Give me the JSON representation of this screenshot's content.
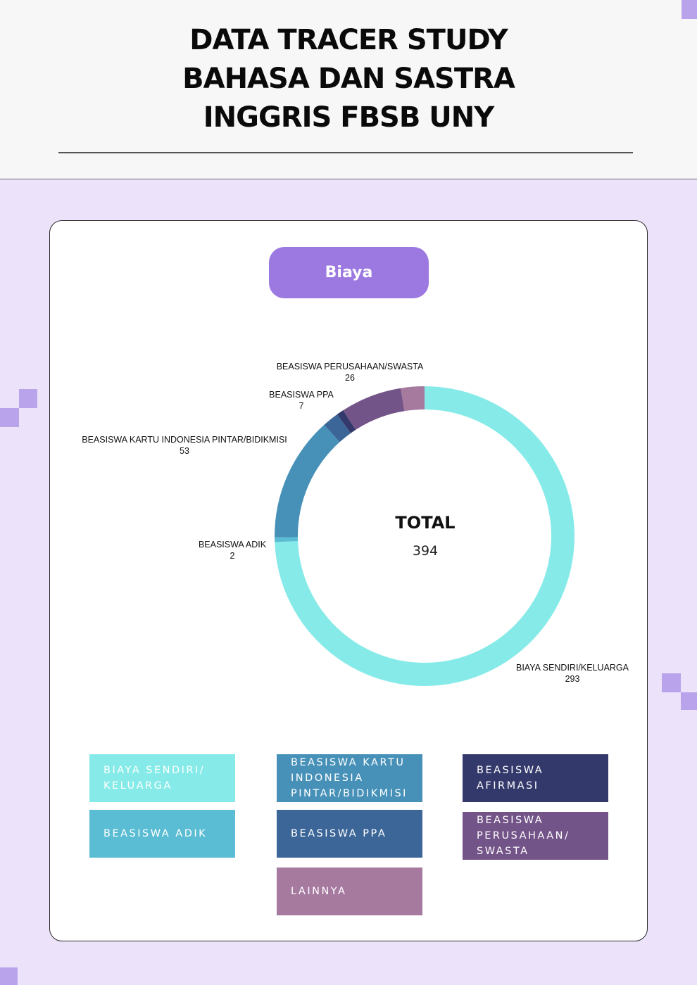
{
  "header": {
    "title_lines": [
      "DATA TRACER STUDY",
      "BAHASA DAN SASTRA",
      "INGGRIS FBSB UNY"
    ]
  },
  "badge": "Biaya",
  "chart_data": {
    "type": "pie",
    "variant": "donut",
    "center_title": "TOTAL",
    "center_value": "394",
    "slices": [
      {
        "label": "BIAYA SENDIRI/KELUARGA",
        "value": 293,
        "color": "#86ebe8"
      },
      {
        "label": "BEASISWA ADIK",
        "value": 2,
        "color": "#5abdd3"
      },
      {
        "label": "BEASISWA KARTU INDONESIA PINTAR/BIDIKMISI",
        "value": 53,
        "color": "#4791b9"
      },
      {
        "label": "BEASISWA PPA",
        "value": 7,
        "color": "#3c6698"
      },
      {
        "label": "BEASISWA AFIRMASI",
        "value": 3,
        "color": "#34396b"
      },
      {
        "label": "BEASISWA PERUSAHAAN/SWASTA",
        "value": 26,
        "color": "#735488"
      },
      {
        "label": "LAINNYA",
        "value": 10,
        "color": "#a6799f"
      }
    ],
    "callouts": [
      {
        "label": "BEASISWA PERUSAHAAN/SWASTA",
        "value": "26"
      },
      {
        "label": "BEASISWA PPA",
        "value": "7"
      },
      {
        "label": "BEASISWA KARTU INDONESIA PINTAR/BIDIKMISI",
        "value": "53"
      },
      {
        "label": "BEASISWA ADIK",
        "value": "2"
      },
      {
        "label": "BIAYA SENDIRI/KELUARGA",
        "value": "293"
      }
    ]
  },
  "legend": [
    {
      "lines": "BIAYA SENDIRI/ KELUARGA",
      "color": "#86ebe8"
    },
    {
      "lines": "BEASISWA ADIK",
      "color": "#5abdd3"
    },
    {
      "lines": "BEASISWA KARTU INDONESIA PINTAR/BIDIKMISI",
      "color": "#4791b9"
    },
    {
      "lines": "BEASISWA PPA",
      "color": "#3c6698"
    },
    {
      "lines": "LAINNYA",
      "color": "#a6799f"
    },
    {
      "lines": "BEASISWA AFIRMASI",
      "color": "#34396b"
    },
    {
      "lines": "BEASISWA PERUSAHAAN/ SWASTA",
      "color": "#735488"
    }
  ]
}
